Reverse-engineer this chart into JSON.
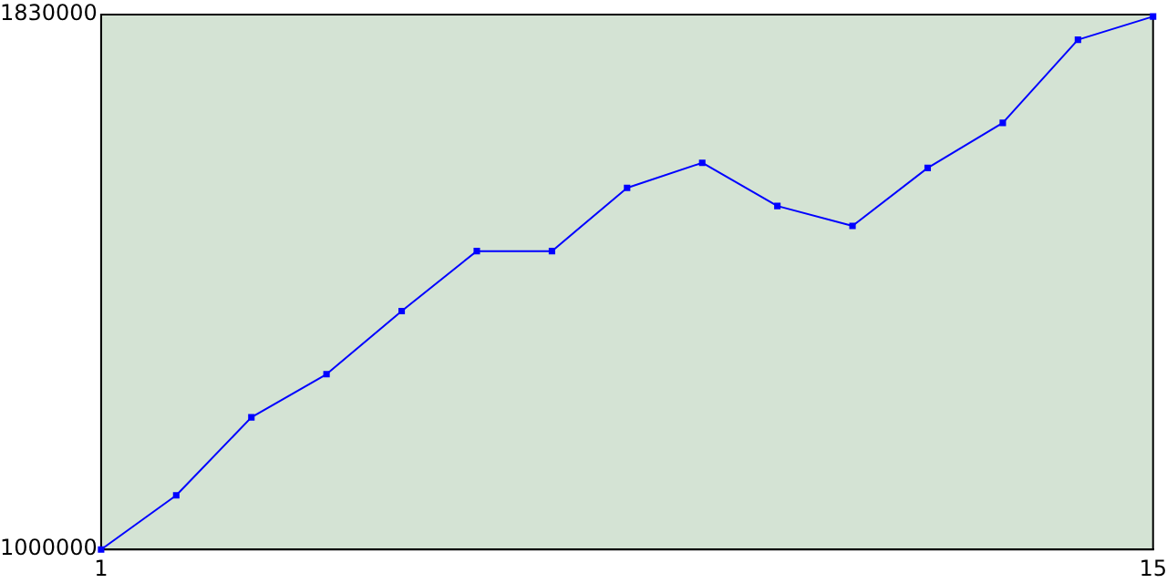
{
  "chart_data": {
    "type": "line",
    "x": [
      1,
      2,
      3,
      4,
      5,
      6,
      7,
      8,
      9,
      10,
      11,
      12,
      13,
      14,
      15
    ],
    "series": [
      {
        "color": "#0000ff",
        "values": [
          1000000,
          1084000,
          1205000,
          1272000,
          1370000,
          1463000,
          1463000,
          1561000,
          1600000,
          1533000,
          1502000,
          1592000,
          1662000,
          1791000,
          1827000
        ]
      }
    ],
    "xlim": [
      1,
      15
    ],
    "xticks": [
      1,
      15
    ],
    "ylim": [
      1000000,
      1830000
    ],
    "yticks": [
      1000000,
      1830000
    ],
    "grid": false,
    "legend": false,
    "marker": "square",
    "line_style": "solid"
  }
}
